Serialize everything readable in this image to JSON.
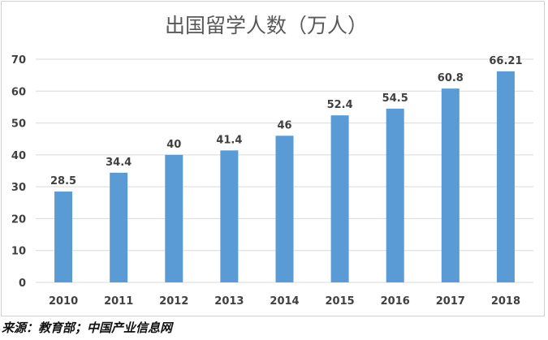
{
  "chart_data": {
    "type": "bar",
    "title": "出国留学人数（万人）",
    "categories": [
      "2010",
      "2011",
      "2012",
      "2013",
      "2014",
      "2015",
      "2016",
      "2017",
      "2018"
    ],
    "series": [
      {
        "values": [
          28.5,
          34.4,
          40,
          41.4,
          46,
          52.4,
          54.5,
          60.8,
          66.21
        ],
        "data_labels": [
          "28.5",
          "34.4",
          "40",
          "41.4",
          "46",
          "52.4",
          "54.5",
          "60.8",
          "66.21"
        ],
        "color": "#5b9bd5"
      }
    ],
    "xlabel": "",
    "ylabel": "",
    "ylim": [
      0,
      70
    ],
    "yticks": [
      "0",
      "10",
      "20",
      "30",
      "40",
      "50",
      "60",
      "70"
    ],
    "grid": true,
    "legend": "none",
    "colors": {
      "bar": "#5b9bd5",
      "grid": "#d9d9d9",
      "title": "#595959",
      "labels": "#404040"
    }
  },
  "source_note": "来源：教育部；中国产业信息网"
}
